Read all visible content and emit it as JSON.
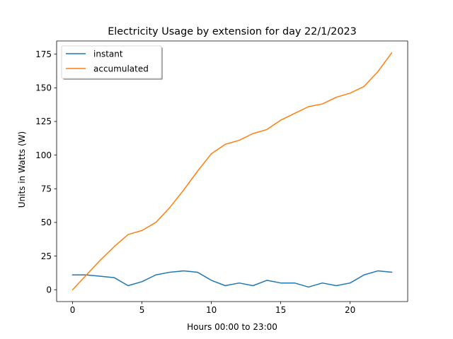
{
  "chart_data": {
    "type": "line",
    "title": "Electricity Usage by extension for day 22/1/2023",
    "xlabel": "Hours 00:00 to 23:00",
    "ylabel": "Units in Watts (W)",
    "xlim": [
      -1.15,
      24.15
    ],
    "ylim": [
      -8.8,
      184.8
    ],
    "xticks": [
      0,
      5,
      10,
      15,
      20
    ],
    "yticks": [
      0,
      25,
      50,
      75,
      100,
      125,
      150,
      175
    ],
    "legend_position": "upper-left",
    "x": [
      0,
      1,
      2,
      3,
      4,
      5,
      6,
      7,
      8,
      9,
      10,
      11,
      12,
      13,
      14,
      15,
      16,
      17,
      18,
      19,
      20,
      21,
      22,
      23
    ],
    "series": [
      {
        "name": "instant",
        "color": "#1f77b4",
        "values": [
          11,
          11,
          10,
          9,
          3,
          6,
          11,
          13,
          14,
          13,
          7,
          3,
          5,
          3,
          7,
          5,
          5,
          2,
          5,
          3,
          5,
          11,
          14,
          13
        ]
      },
      {
        "name": "accumulated",
        "color": "#ff7f0e",
        "values": [
          0,
          11,
          22,
          32,
          41,
          44,
          50,
          61,
          74,
          88,
          101,
          108,
          111,
          116,
          119,
          126,
          131,
          136,
          138,
          143,
          146,
          151,
          162,
          176
        ]
      }
    ]
  }
}
